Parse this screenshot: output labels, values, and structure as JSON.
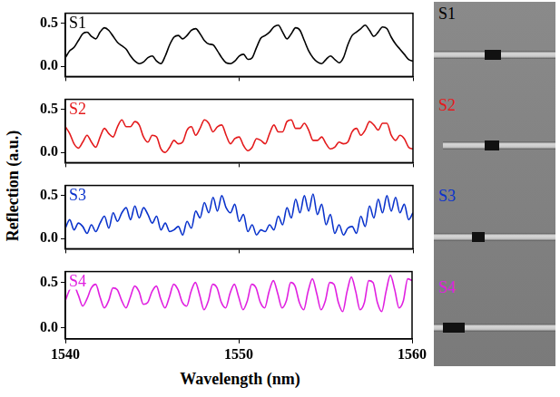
{
  "chart_data": {
    "type": "line",
    "x_label": "Wavelength (nm)",
    "y_label": "Reflection (a.u.)",
    "grid": false,
    "xlim": [
      1540,
      1560
    ],
    "xticks": [
      1540,
      1550,
      1560
    ],
    "ylim": [
      -0.12,
      0.62
    ],
    "yticks": [
      {
        "value": 0,
        "label": "0.0"
      },
      {
        "value": 0.5,
        "label": "0.5"
      }
    ],
    "x": [
      1540,
      1540.25,
      1540.5,
      1540.75,
      1541,
      1541.25,
      1541.5,
      1541.75,
      1542,
      1542.25,
      1542.5,
      1542.75,
      1543,
      1543.25,
      1543.5,
      1543.75,
      1544,
      1544.25,
      1544.5,
      1544.75,
      1545,
      1545.25,
      1545.5,
      1545.75,
      1546,
      1546.25,
      1546.5,
      1546.75,
      1547,
      1547.25,
      1547.5,
      1547.75,
      1548,
      1548.25,
      1548.5,
      1548.75,
      1549,
      1549.25,
      1549.5,
      1549.75,
      1550,
      1550.25,
      1550.5,
      1550.75,
      1551,
      1551.25,
      1551.5,
      1551.75,
      1552,
      1552.25,
      1552.5,
      1552.75,
      1553,
      1553.25,
      1553.5,
      1553.75,
      1554,
      1554.25,
      1554.5,
      1554.75,
      1555,
      1555.25,
      1555.5,
      1555.75,
      1556,
      1556.25,
      1556.5,
      1556.75,
      1557,
      1557.25,
      1557.5,
      1557.75,
      1558,
      1558.25,
      1558.5,
      1558.75,
      1559,
      1559.25,
      1559.5,
      1559.75,
      1560
    ],
    "series": [
      {
        "name": "S1",
        "color": "#000000",
        "values": [
          0.1,
          0.18,
          0.22,
          0.3,
          0.38,
          0.4,
          0.35,
          0.32,
          0.4,
          0.45,
          0.42,
          0.35,
          0.28,
          0.24,
          0.2,
          0.12,
          0.06,
          0.03,
          0.05,
          0.1,
          0.12,
          0.06,
          0.03,
          0.12,
          0.25,
          0.34,
          0.36,
          0.32,
          0.36,
          0.42,
          0.44,
          0.38,
          0.3,
          0.26,
          0.25,
          0.18,
          0.1,
          0.04,
          0.03,
          0.06,
          0.12,
          0.14,
          0.08,
          0.1,
          0.22,
          0.33,
          0.36,
          0.4,
          0.46,
          0.48,
          0.4,
          0.32,
          0.38,
          0.45,
          0.42,
          0.3,
          0.18,
          0.1,
          0.05,
          0.03,
          0.08,
          0.12,
          0.08,
          0.04,
          0.1,
          0.25,
          0.36,
          0.4,
          0.44,
          0.48,
          0.42,
          0.35,
          0.4,
          0.46,
          0.44,
          0.34,
          0.26,
          0.2,
          0.14,
          0.08,
          0.06
        ]
      },
      {
        "name": "S2",
        "color": "#e41a1c",
        "values": [
          0.3,
          0.22,
          0.1,
          0.05,
          0.12,
          0.2,
          0.12,
          0.06,
          0.18,
          0.28,
          0.22,
          0.18,
          0.3,
          0.38,
          0.3,
          0.3,
          0.36,
          0.32,
          0.18,
          0.12,
          0.2,
          0.18,
          0.04,
          0.0,
          0.06,
          0.14,
          0.1,
          0.12,
          0.26,
          0.3,
          0.2,
          0.28,
          0.38,
          0.34,
          0.24,
          0.3,
          0.32,
          0.2,
          0.1,
          0.16,
          0.18,
          0.08,
          0.02,
          0.06,
          0.16,
          0.14,
          0.1,
          0.22,
          0.32,
          0.24,
          0.24,
          0.36,
          0.38,
          0.28,
          0.28,
          0.34,
          0.26,
          0.14,
          0.14,
          0.18,
          0.1,
          0.04,
          0.06,
          0.12,
          0.1,
          0.12,
          0.24,
          0.28,
          0.2,
          0.26,
          0.36,
          0.32,
          0.26,
          0.34,
          0.34,
          0.2,
          0.14,
          0.2,
          0.16,
          0.06,
          0.04
        ]
      },
      {
        "name": "S3",
        "color": "#0a33cc",
        "values": [
          0.12,
          0.22,
          0.1,
          0.18,
          0.14,
          0.06,
          0.16,
          0.08,
          0.18,
          0.26,
          0.12,
          0.3,
          0.2,
          0.3,
          0.36,
          0.22,
          0.38,
          0.24,
          0.36,
          0.28,
          0.18,
          0.26,
          0.1,
          0.18,
          0.08,
          0.1,
          0.14,
          0.04,
          0.2,
          0.12,
          0.32,
          0.24,
          0.42,
          0.3,
          0.48,
          0.32,
          0.5,
          0.36,
          0.3,
          0.4,
          0.2,
          0.28,
          0.08,
          0.16,
          0.04,
          0.1,
          0.08,
          0.16,
          0.1,
          0.26,
          0.16,
          0.36,
          0.24,
          0.46,
          0.3,
          0.5,
          0.32,
          0.52,
          0.28,
          0.4,
          0.16,
          0.28,
          0.06,
          0.16,
          0.04,
          0.12,
          0.14,
          0.06,
          0.26,
          0.14,
          0.38,
          0.24,
          0.46,
          0.3,
          0.5,
          0.32,
          0.48,
          0.3,
          0.4,
          0.22,
          0.3
        ]
      },
      {
        "name": "S4",
        "color": "#e020e0",
        "values": [
          0.3,
          0.42,
          0.46,
          0.36,
          0.24,
          0.32,
          0.44,
          0.48,
          0.34,
          0.22,
          0.3,
          0.44,
          0.42,
          0.3,
          0.22,
          0.34,
          0.46,
          0.4,
          0.26,
          0.28,
          0.4,
          0.46,
          0.32,
          0.22,
          0.34,
          0.48,
          0.42,
          0.28,
          0.24,
          0.4,
          0.5,
          0.36,
          0.2,
          0.3,
          0.48,
          0.44,
          0.28,
          0.22,
          0.38,
          0.48,
          0.34,
          0.2,
          0.3,
          0.48,
          0.44,
          0.28,
          0.22,
          0.4,
          0.52,
          0.38,
          0.22,
          0.3,
          0.5,
          0.46,
          0.28,
          0.2,
          0.4,
          0.54,
          0.38,
          0.2,
          0.3,
          0.5,
          0.48,
          0.28,
          0.18,
          0.4,
          0.56,
          0.4,
          0.2,
          0.28,
          0.52,
          0.5,
          0.28,
          0.18,
          0.4,
          0.58,
          0.42,
          0.22,
          0.3,
          0.54,
          0.52
        ]
      }
    ]
  }
}
